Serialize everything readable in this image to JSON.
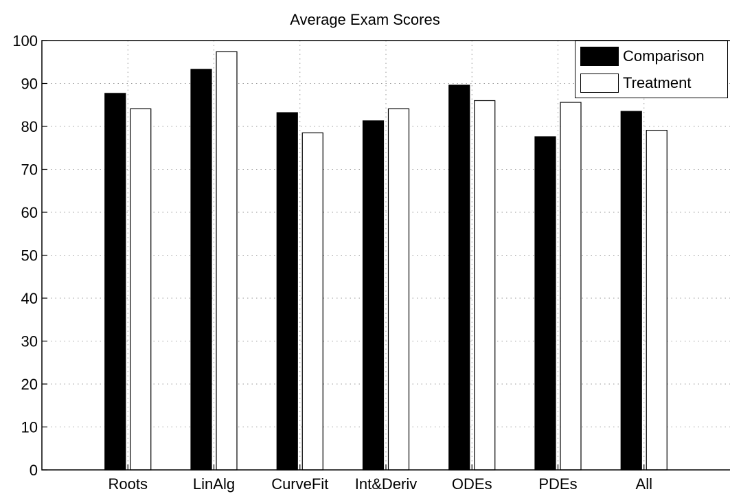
{
  "chart_data": {
    "type": "bar",
    "title": "Average Exam Scores",
    "xlabel": "",
    "ylabel": "",
    "categories": [
      "Roots",
      "LinAlg",
      "CurveFit",
      "Int&Deriv",
      "ODEs",
      "PDEs",
      "All"
    ],
    "series": [
      {
        "name": "Comparison",
        "color": "#000000",
        "values": [
          87.7,
          93.3,
          83.2,
          81.3,
          89.6,
          77.6,
          83.5
        ]
      },
      {
        "name": "Treatment",
        "color": "#ffffff",
        "values": [
          84.1,
          97.4,
          78.5,
          84.1,
          86.0,
          85.6,
          79.1
        ]
      }
    ],
    "ylim": [
      0,
      100
    ],
    "yticks": [
      0,
      10,
      20,
      30,
      40,
      50,
      60,
      70,
      80,
      90,
      100
    ],
    "grid": true,
    "legend_position": "top-right"
  }
}
